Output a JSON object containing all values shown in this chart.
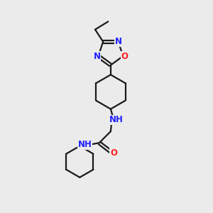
{
  "bg_color": "#ebebeb",
  "bond_color": "#1a1a1a",
  "N_color": "#2020ff",
  "O_color": "#ff2020",
  "line_width": 1.6,
  "font_size": 8.5,
  "fig_width": 3.0,
  "fig_height": 3.0,
  "dpi": 100,
  "xlim": [
    0,
    10
  ],
  "ylim": [
    0,
    10
  ]
}
